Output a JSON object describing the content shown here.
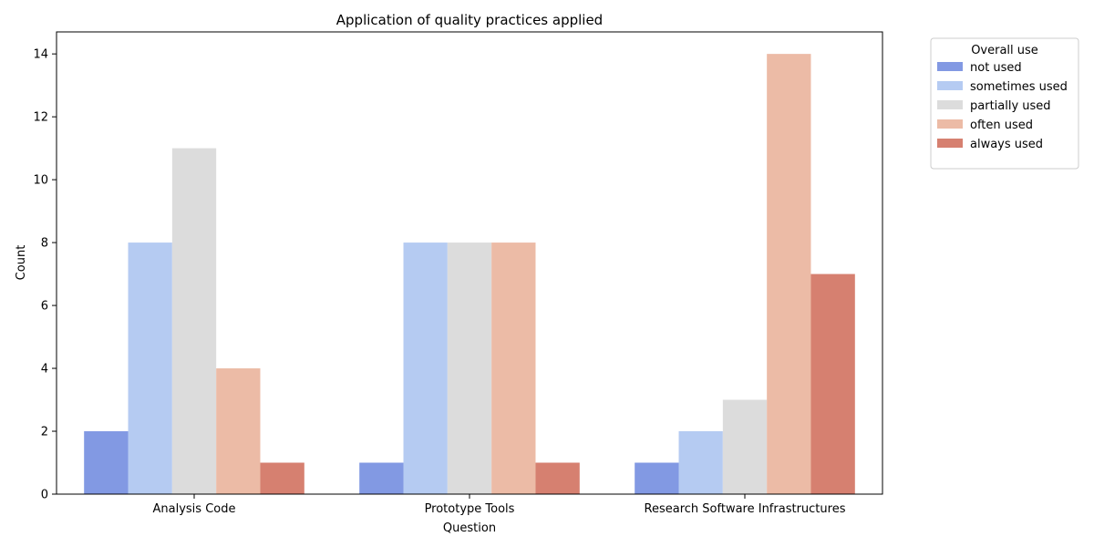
{
  "chart_data": {
    "type": "bar",
    "title": "Application of quality practices applied",
    "xlabel": "Question",
    "ylabel": "Count",
    "categories": [
      "Analysis Code",
      "Prototype Tools",
      "Research Software Infrastructures"
    ],
    "ylim": [
      0,
      14.7
    ],
    "yticks": [
      0,
      2,
      4,
      6,
      8,
      10,
      12,
      14
    ],
    "grid": false,
    "legend": {
      "title": "Overall use",
      "placement": "outside-right"
    },
    "series": [
      {
        "name": "not used",
        "color": "#8299e3",
        "values": [
          2,
          1,
          1
        ]
      },
      {
        "name": "sometimes used",
        "color": "#b5cbf2",
        "values": [
          8,
          8,
          2
        ]
      },
      {
        "name": "partially used",
        "color": "#dcdcdc",
        "values": [
          11,
          8,
          3
        ]
      },
      {
        "name": "often used",
        "color": "#ecbba6",
        "values": [
          4,
          8,
          14
        ]
      },
      {
        "name": "always used",
        "color": "#d68070",
        "values": [
          1,
          1,
          7
        ]
      }
    ]
  }
}
